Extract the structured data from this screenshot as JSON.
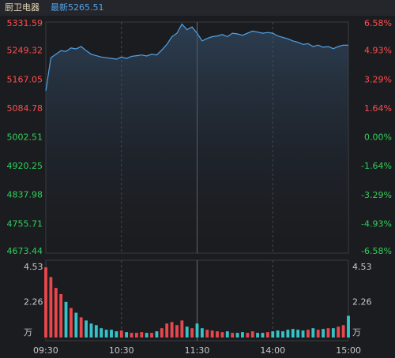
{
  "chart_data": [
    {
      "type": "line",
      "title": "厨卫电器",
      "subtitle": "最新5265.51",
      "categories": [
        "09:30",
        null,
        null,
        null,
        null,
        null,
        null,
        null,
        null,
        null,
        null,
        null,
        null,
        null,
        null,
        "10:30",
        null,
        null,
        null,
        null,
        null,
        null,
        null,
        null,
        null,
        null,
        null,
        null,
        null,
        null,
        "11:30",
        null,
        null,
        null,
        null,
        null,
        null,
        null,
        null,
        null,
        null,
        null,
        null,
        null,
        null,
        "14:00",
        null,
        null,
        null,
        null,
        null,
        null,
        null,
        null,
        null,
        null,
        null,
        null,
        null,
        null,
        "15:00"
      ],
      "values": [
        5136,
        5230,
        5240,
        5250,
        5248,
        5258,
        5255,
        5262,
        5250,
        5240,
        5236,
        5232,
        5230,
        5228,
        5226,
        5232,
        5228,
        5234,
        5236,
        5238,
        5235,
        5240,
        5238,
        5252,
        5268,
        5290,
        5300,
        5326,
        5310,
        5318,
        5300,
        5278,
        5285,
        5290,
        5292,
        5296,
        5290,
        5300,
        5298,
        5294,
        5300,
        5306,
        5303,
        5300,
        5302,
        5300,
        5292,
        5288,
        5284,
        5278,
        5274,
        5268,
        5270,
        5262,
        5266,
        5260,
        5262,
        5256,
        5262,
        5266,
        5265.51
      ],
      "color": "#4fa3e8",
      "up_color": "#ff4d4d",
      "down_color": "#2fd05a",
      "ylim": [
        4673.44,
        5331.59
      ],
      "yticks": [
        5331.59,
        5249.32,
        5167.05,
        5084.78,
        5002.51,
        4920.25,
        4837.98,
        4755.71,
        4673.44
      ],
      "y2lim": [
        -6.58,
        6.58
      ],
      "y2ticks": [
        {
          "value": 6.58,
          "label": "6.58%"
        },
        {
          "value": 4.93,
          "label": "4.93%"
        },
        {
          "value": 3.29,
          "label": "3.29%"
        },
        {
          "value": 1.64,
          "label": "1.64%"
        },
        {
          "value": 0,
          "label": "0.00%"
        },
        {
          "value": -1.64,
          "label": "-1.64%"
        },
        {
          "value": -3.29,
          "label": "-3.29%"
        },
        {
          "value": -4.93,
          "label": "-4.93%"
        },
        {
          "value": -6.58,
          "label": "-6.58%"
        }
      ]
    },
    {
      "type": "bar",
      "values": [
        4.53,
        3.9,
        3.2,
        2.8,
        2.3,
        1.9,
        1.6,
        1.3,
        1.1,
        0.9,
        0.8,
        0.6,
        0.5,
        0.5,
        0.4,
        0.45,
        0.35,
        0.3,
        0.3,
        0.35,
        0.3,
        0.3,
        0.4,
        0.6,
        0.9,
        1.0,
        0.8,
        1.1,
        0.7,
        0.6,
        0.9,
        0.6,
        0.5,
        0.45,
        0.4,
        0.35,
        0.4,
        0.3,
        0.3,
        0.35,
        0.3,
        0.4,
        0.3,
        0.3,
        0.35,
        0.4,
        0.45,
        0.4,
        0.5,
        0.55,
        0.5,
        0.45,
        0.5,
        0.6,
        0.5,
        0.55,
        0.6,
        0.6,
        0.7,
        0.8,
        1.4
      ],
      "up_color": "#e8474c",
      "down_color": "#35c3c9",
      "ylim": [
        0,
        4.53
      ],
      "yticks": [
        {
          "value": 0,
          "label": "万"
        },
        2.26,
        4.53
      ]
    }
  ]
}
